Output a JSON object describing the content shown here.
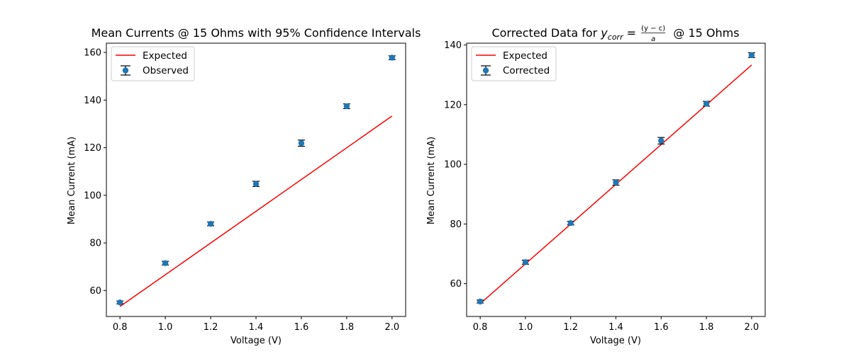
{
  "figure": {
    "background": "#ffffff"
  },
  "chart_data": [
    {
      "type": "line",
      "title": "Mean Currents @ 15 Ohms with 95% Confidence Intervals",
      "xlabel": "Voltage (V)",
      "ylabel": "Mean Current (mA)",
      "xlim": [
        0.74,
        2.06
      ],
      "ylim": [
        49.1,
        163.9
      ],
      "xticks": [
        0.8,
        1.0,
        1.2,
        1.4,
        1.6,
        1.8,
        2.0
      ],
      "xtick_labels": [
        "0.8",
        "1.0",
        "1.2",
        "1.4",
        "1.6",
        "1.8",
        "2.0"
      ],
      "yticks": [
        60,
        80,
        100,
        120,
        140,
        160
      ],
      "ytick_labels": [
        "60",
        "80",
        "100",
        "120",
        "140",
        "160"
      ],
      "legend": {
        "position": "top-left",
        "entries": [
          {
            "label": "Expected",
            "kind": "line"
          },
          {
            "label": "Observed",
            "kind": "errorbar"
          }
        ]
      },
      "series": [
        {
          "name": "Expected",
          "kind": "line",
          "color": "#ff0000",
          "x": [
            0.8,
            2.0
          ],
          "y": [
            53.3,
            133.3
          ]
        },
        {
          "name": "Observed",
          "kind": "errorbar",
          "color": "#1f77b4",
          "error_color": "#000000",
          "x": [
            0.8,
            1.0,
            1.2,
            1.4,
            1.6,
            1.8,
            2.0
          ],
          "y": [
            55.0,
            71.5,
            88.0,
            104.8,
            121.9,
            137.4,
            157.8
          ],
          "err": [
            0.6,
            0.8,
            0.8,
            1.1,
            1.3,
            1.0,
            0.8
          ]
        }
      ]
    },
    {
      "type": "line",
      "title_prefix": "Corrected Data for ",
      "title_var": "y",
      "title_sub": "corr",
      "title_eq": " = ",
      "title_num": "(y − c)",
      "title_den": "a",
      "title_suffix": " @ 15 Ohms",
      "xlabel": "Voltage (V)",
      "ylabel": "Mean Current (mA)",
      "xlim": [
        0.74,
        2.06
      ],
      "ylim": [
        49.0,
        140.6
      ],
      "xticks": [
        0.8,
        1.0,
        1.2,
        1.4,
        1.6,
        1.8,
        2.0
      ],
      "xtick_labels": [
        "0.8",
        "1.0",
        "1.2",
        "1.4",
        "1.6",
        "1.8",
        "2.0"
      ],
      "yticks": [
        60,
        80,
        100,
        120,
        140
      ],
      "ytick_labels": [
        "60",
        "80",
        "100",
        "120",
        "140"
      ],
      "legend": {
        "position": "top-left",
        "entries": [
          {
            "label": "Expected",
            "kind": "line"
          },
          {
            "label": "Corrected",
            "kind": "errorbar"
          }
        ]
      },
      "series": [
        {
          "name": "Expected",
          "kind": "line",
          "color": "#ff0000",
          "x": [
            0.8,
            2.0
          ],
          "y": [
            53.3,
            133.3
          ]
        },
        {
          "name": "Corrected",
          "kind": "errorbar",
          "color": "#1f77b4",
          "error_color": "#000000",
          "x": [
            0.8,
            1.0,
            1.2,
            1.4,
            1.6,
            1.8,
            2.0
          ],
          "y": [
            54.0,
            67.2,
            80.3,
            93.9,
            107.9,
            120.3,
            136.6
          ],
          "err": [
            0.5,
            0.7,
            0.6,
            0.9,
            1.1,
            0.8,
            0.8
          ]
        }
      ]
    }
  ]
}
